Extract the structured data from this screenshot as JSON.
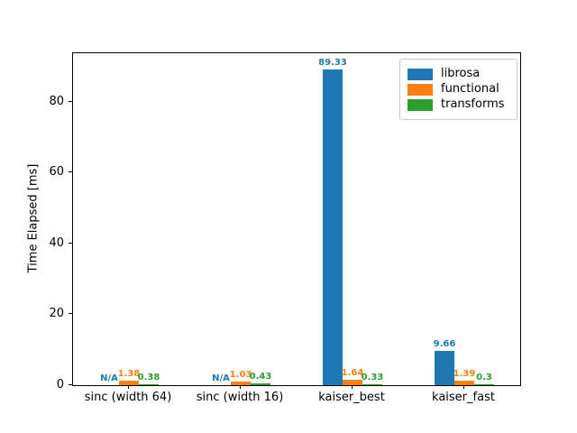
{
  "figure": {
    "background": "#ffffff",
    "spine_color": "#000000"
  },
  "chart_data": {
    "type": "bar",
    "title": "",
    "xlabel": "",
    "ylabel": "Time Elapsed [ms]",
    "categories": [
      "sinc (width 64)",
      "sinc (width 16)",
      "kaiser_best",
      "kaiser_fast"
    ],
    "series": [
      {
        "name": "librosa",
        "color": "#1f77b4",
        "values": [
          null,
          null,
          89.33,
          9.66
        ],
        "labels": [
          "N/A",
          "N/A",
          "89.33",
          "9.66"
        ]
      },
      {
        "name": "functional",
        "color": "#ff7f0e",
        "values": [
          1.38,
          1.03,
          1.64,
          1.39
        ],
        "labels": [
          "1.38",
          "1.03",
          "1.64",
          "1.39"
        ]
      },
      {
        "name": "transforms",
        "color": "#2ca02c",
        "values": [
          0.38,
          0.43,
          0.33,
          0.3
        ],
        "labels": [
          "0.38",
          "0.43",
          "0.33",
          "0.3"
        ]
      }
    ],
    "ylim": [
      0,
      93.8
    ],
    "yticks": [
      0,
      20,
      40,
      60,
      80
    ],
    "grid": false,
    "legend_position": "upper right"
  }
}
